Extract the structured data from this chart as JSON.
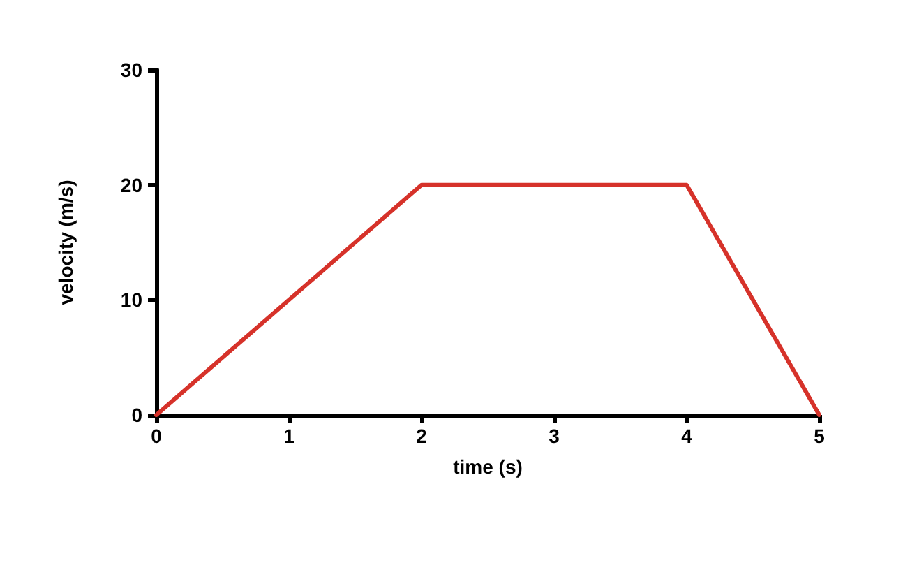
{
  "chart_data": {
    "type": "line",
    "xlabel": "time (s)",
    "ylabel": "velocity (m/s)",
    "x": [
      0,
      2,
      4,
      5
    ],
    "series": [
      {
        "color": "#d6322a",
        "values": [
          0,
          20,
          20,
          0
        ]
      }
    ],
    "xlim": [
      0,
      5
    ],
    "xticks": [
      0,
      1,
      2,
      3,
      4,
      5
    ],
    "ylim": [
      0,
      30
    ],
    "yticks": [
      0,
      10,
      20,
      30
    ],
    "grid": false,
    "marker": "none",
    "line_style": "solid"
  }
}
